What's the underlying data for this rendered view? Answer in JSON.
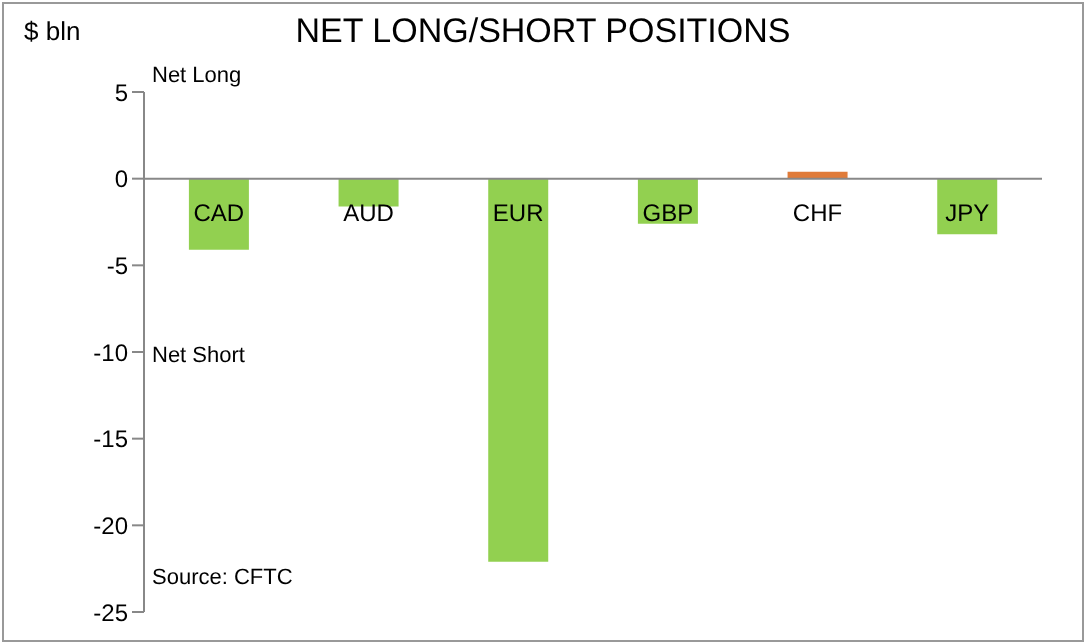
{
  "chart_data": {
    "type": "bar",
    "title": "NET LONG/SHORT POSITIONS",
    "ylabel": "$ bln",
    "categories": [
      "CAD",
      "AUD",
      "EUR",
      "GBP",
      "CHF",
      "JPY"
    ],
    "values": [
      -4.1,
      -1.6,
      -22.1,
      -2.6,
      0.4,
      -3.2
    ],
    "colors": [
      "#92d050",
      "#92d050",
      "#92d050",
      "#92d050",
      "#e07b39",
      "#92d050"
    ],
    "ylim": [
      -25,
      5
    ],
    "yticks": [
      -25,
      -20,
      -15,
      -10,
      -5,
      0,
      5
    ],
    "grid": false,
    "annotations": [
      "Net Long",
      "Net Short",
      "Source: CFTC"
    ]
  }
}
